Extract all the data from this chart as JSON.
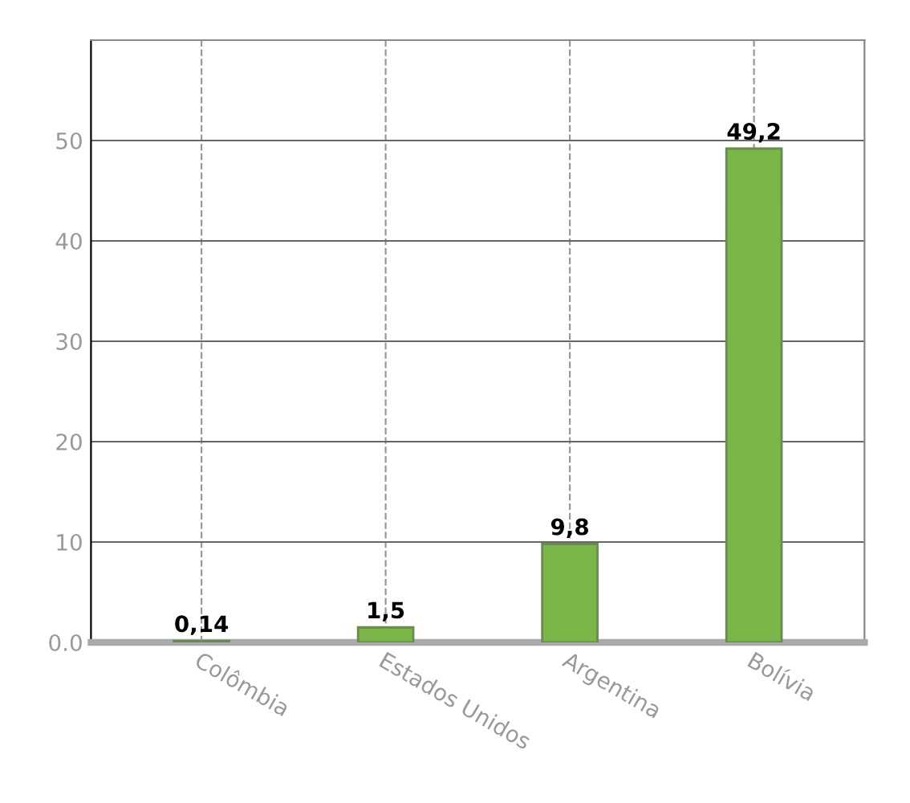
{
  "chart_data": {
    "type": "bar",
    "categories": [
      "Colômbia",
      "Estados Unidos",
      "Argentina",
      "Bolívia"
    ],
    "values": [
      0.14,
      1.5,
      9.8,
      49.2
    ],
    "value_labels": [
      "0,14",
      "1,5",
      "9,8",
      "49,2"
    ],
    "color": "#7ab648",
    "ylim": [
      0,
      60
    ],
    "yticks": [
      {
        "value": 0,
        "label": "0.0"
      },
      10,
      20,
      30,
      40,
      50,
      {
        "value": 60,
        "label": null
      }
    ],
    "grid": true
  }
}
